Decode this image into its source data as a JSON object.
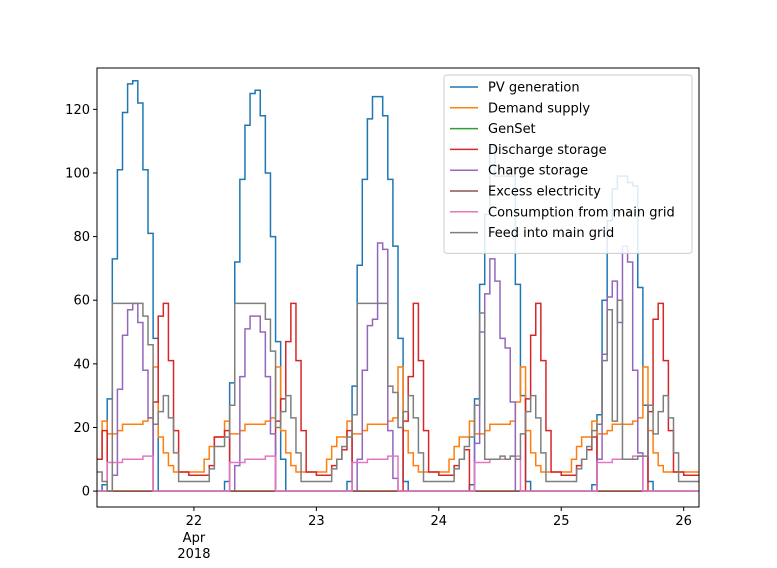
{
  "chart_data": {
    "type": "line",
    "drawstyle": "steps-post",
    "x_unit": "hours from 2018-04-21 05:00",
    "xlim": [
      0,
      118
    ],
    "ylim": [
      -5,
      133
    ],
    "yticks": [
      0,
      20,
      40,
      60,
      80,
      100,
      120
    ],
    "xticks": [
      {
        "hour": 19,
        "label": "22",
        "sub": [
          "Apr",
          "2018"
        ]
      },
      {
        "hour": 43,
        "label": "23",
        "sub": []
      },
      {
        "hour": 67,
        "label": "24",
        "sub": []
      },
      {
        "hour": 91,
        "label": "25",
        "sub": []
      },
      {
        "hour": 115,
        "label": "26",
        "sub": []
      }
    ],
    "legend_position": "upper right",
    "series": [
      {
        "name": "PV generation",
        "color": "#1f77b4",
        "values": [
          0,
          2,
          29,
          73,
          101,
          119,
          128,
          129,
          122,
          101,
          81,
          48,
          0,
          0,
          0,
          0,
          0,
          0,
          0,
          0,
          0,
          0,
          0,
          0,
          0,
          3,
          34,
          72,
          98,
          115,
          125,
          126,
          118,
          100,
          80,
          47,
          10,
          0,
          0,
          0,
          0,
          0,
          0,
          0,
          0,
          0,
          0,
          0,
          0,
          3,
          33,
          71,
          98,
          117,
          124,
          124,
          118,
          98,
          77,
          48,
          3,
          0,
          0,
          0,
          0,
          0,
          0,
          0,
          0,
          0,
          0,
          0,
          0,
          2,
          29,
          65,
          87,
          108,
          99,
          99,
          99,
          99,
          65,
          30,
          3,
          0,
          0,
          0,
          0,
          0,
          0,
          0,
          0,
          0,
          0,
          0,
          0,
          2,
          24,
          60,
          85,
          95,
          99,
          99,
          97,
          96,
          64,
          27,
          3,
          0,
          0,
          0,
          0,
          0,
          0,
          0
        ]
      },
      {
        "name": "Demand supply",
        "color": "#ff7f0e",
        "values": [
          10,
          22,
          18,
          18,
          19,
          21,
          21,
          21,
          21,
          22,
          23,
          39,
          17,
          12,
          8,
          6,
          6,
          6,
          6,
          6,
          6,
          10,
          14,
          17,
          17,
          22,
          18,
          18,
          19,
          21,
          21,
          21,
          21,
          22,
          23,
          39,
          19,
          12,
          8,
          6,
          6,
          6,
          6,
          6,
          6,
          10,
          14,
          17,
          17,
          22,
          18,
          18,
          19,
          21,
          21,
          21,
          21,
          22,
          23,
          39,
          19,
          12,
          8,
          6,
          6,
          6,
          6,
          6,
          6,
          10,
          14,
          17,
          17,
          22,
          18,
          18,
          19,
          21,
          21,
          21,
          21,
          22,
          28,
          39,
          19,
          12,
          8,
          6,
          6,
          6,
          6,
          6,
          6,
          10,
          14,
          17,
          17,
          22,
          18,
          18,
          19,
          21,
          21,
          21,
          21,
          22,
          23,
          39,
          19,
          12,
          8,
          6,
          6,
          6,
          6,
          6,
          6,
          6
        ]
      },
      {
        "name": "GenSet",
        "color": "#2ca02c",
        "values": [
          0,
          0,
          0,
          0,
          0,
          0,
          0,
          0,
          0,
          0,
          0,
          0,
          0,
          0,
          0,
          0,
          0,
          0,
          0,
          0,
          0,
          0,
          0,
          0,
          0,
          0,
          0,
          0,
          0,
          0,
          0,
          0,
          0,
          0,
          0,
          0,
          0,
          0,
          0,
          0,
          0,
          0,
          0,
          0,
          0,
          0,
          0,
          0,
          0,
          0,
          0,
          0,
          0,
          0,
          0,
          0,
          0,
          0,
          0,
          0,
          0,
          0,
          0,
          0,
          0,
          0,
          0,
          0,
          0,
          0,
          0,
          0,
          0,
          0,
          0,
          0,
          0,
          0,
          0,
          0,
          0,
          0,
          0,
          0,
          0,
          0,
          0,
          0,
          0,
          0,
          0,
          0,
          0,
          0,
          0,
          0,
          0,
          0,
          0,
          0,
          0,
          0,
          0,
          0,
          0,
          0,
          0,
          0,
          0,
          0,
          0,
          0,
          0,
          0,
          0,
          0,
          0,
          0
        ]
      },
      {
        "name": "Discharge storage",
        "color": "#d62728",
        "values": [
          10,
          19,
          0,
          0,
          0,
          0,
          0,
          0,
          0,
          0,
          0,
          28,
          55,
          59,
          41,
          19,
          6,
          6,
          5,
          5,
          5,
          5,
          8,
          17,
          17,
          19,
          0,
          0,
          0,
          0,
          0,
          0,
          0,
          0,
          0,
          22,
          29,
          47,
          59,
          41,
          19,
          6,
          6,
          5,
          5,
          5,
          8,
          10,
          13,
          19,
          0,
          0,
          0,
          0,
          0,
          0,
          0,
          0,
          0,
          0,
          22,
          36,
          59,
          41,
          19,
          6,
          6,
          5,
          5,
          5,
          8,
          10,
          13,
          0,
          0,
          0,
          0,
          0,
          0,
          0,
          0,
          0,
          0,
          0,
          29,
          49,
          59,
          41,
          19,
          6,
          6,
          5,
          5,
          5,
          8,
          10,
          13,
          17,
          0,
          0,
          0,
          0,
          0,
          0,
          0,
          0,
          0,
          0,
          25,
          54,
          59,
          41,
          19,
          6,
          6,
          5,
          5,
          5
        ]
      },
      {
        "name": "Charge storage",
        "color": "#9467bd",
        "values": [
          0,
          0,
          0,
          5,
          32,
          49,
          57,
          59,
          53,
          38,
          23,
          0,
          0,
          0,
          0,
          0,
          0,
          0,
          0,
          0,
          0,
          0,
          0,
          0,
          0,
          0,
          0,
          8,
          36,
          51,
          55,
          55,
          50,
          36,
          18,
          0,
          0,
          0,
          0,
          0,
          0,
          0,
          0,
          0,
          0,
          0,
          0,
          0,
          0,
          0,
          0,
          10,
          38,
          52,
          54,
          78,
          76,
          19,
          4,
          0,
          0,
          0,
          0,
          0,
          0,
          0,
          0,
          0,
          0,
          0,
          0,
          0,
          0,
          0,
          15,
          50,
          62,
          73,
          66,
          48,
          45,
          28,
          0,
          0,
          0,
          0,
          0,
          0,
          0,
          0,
          0,
          0,
          0,
          0,
          0,
          0,
          0,
          0,
          10,
          43,
          61,
          66,
          53,
          77,
          72,
          38,
          12,
          0,
          0,
          0,
          0,
          0,
          0,
          0,
          0,
          0,
          0,
          0
        ]
      },
      {
        "name": "Excess electricity",
        "color": "#8c564b",
        "values": [
          0,
          0,
          0,
          0,
          0,
          0,
          0,
          0,
          0,
          0,
          0,
          0,
          0,
          0,
          0,
          0,
          0,
          0,
          0,
          0,
          0,
          0,
          0,
          0,
          0,
          0,
          0,
          0,
          0,
          0,
          0,
          0,
          0,
          0,
          0,
          0,
          0,
          0,
          0,
          0,
          0,
          0,
          0,
          0,
          0,
          0,
          0,
          0,
          0,
          0,
          0,
          0,
          0,
          0,
          0,
          0,
          0,
          0,
          0,
          0,
          0,
          0,
          0,
          0,
          0,
          0,
          0,
          0,
          0,
          0,
          0,
          0,
          0,
          0,
          0,
          0,
          0,
          0,
          0,
          0,
          0,
          0,
          0,
          0,
          0,
          0,
          0,
          0,
          0,
          0,
          0,
          0,
          0,
          0,
          0,
          0,
          0,
          0,
          0,
          0,
          0,
          0,
          0,
          0,
          0,
          0,
          0,
          0,
          0,
          0,
          0,
          0,
          0,
          0,
          0,
          0,
          0,
          0
        ]
      },
      {
        "name": "Consumption from main grid",
        "color": "#e377c2",
        "values": [
          0,
          0,
          9,
          9,
          9,
          10,
          10,
          10,
          10,
          11,
          11,
          0,
          0,
          0,
          0,
          0,
          0,
          0,
          0,
          0,
          0,
          0,
          0,
          0,
          0,
          0,
          9,
          9,
          9,
          10,
          10,
          10,
          10,
          11,
          11,
          0,
          0,
          0,
          0,
          0,
          0,
          0,
          0,
          0,
          0,
          0,
          0,
          0,
          0,
          0,
          9,
          9,
          9,
          10,
          10,
          10,
          10,
          11,
          11,
          0,
          0,
          0,
          0,
          0,
          0,
          0,
          0,
          0,
          0,
          0,
          0,
          0,
          0,
          0,
          9,
          9,
          9,
          10,
          10,
          10,
          10,
          11,
          11,
          0,
          0,
          0,
          0,
          0,
          0,
          0,
          0,
          0,
          0,
          0,
          0,
          0,
          0,
          0,
          9,
          9,
          9,
          10,
          10,
          10,
          10,
          11,
          11,
          0,
          0,
          0,
          0,
          0,
          0,
          0,
          0,
          0,
          0,
          0
        ]
      },
      {
        "name": "Feed into main grid",
        "color": "#7f7f7f",
        "values": [
          6,
          3,
          0,
          59,
          59,
          59,
          59,
          59,
          59,
          55,
          46,
          21,
          25,
          30,
          23,
          12,
          3,
          3,
          3,
          3,
          3,
          3,
          7,
          14,
          14,
          17,
          27,
          59,
          59,
          59,
          59,
          59,
          59,
          54,
          44,
          20,
          25,
          30,
          23,
          12,
          3,
          3,
          3,
          3,
          3,
          3,
          7,
          10,
          14,
          17,
          24,
          59,
          59,
          59,
          59,
          59,
          59,
          33,
          31,
          20,
          25,
          30,
          23,
          12,
          3,
          3,
          3,
          3,
          3,
          3,
          7,
          10,
          14,
          17,
          27,
          56,
          10,
          10,
          10,
          11,
          10,
          11,
          10,
          18,
          25,
          30,
          23,
          12,
          3,
          3,
          3,
          3,
          3,
          3,
          7,
          10,
          14,
          19,
          21,
          41,
          57,
          22,
          60,
          10,
          10,
          10,
          11,
          11,
          27,
          18,
          25,
          30,
          23,
          12,
          3,
          3,
          3,
          3,
          3,
          3
        ]
      }
    ]
  }
}
